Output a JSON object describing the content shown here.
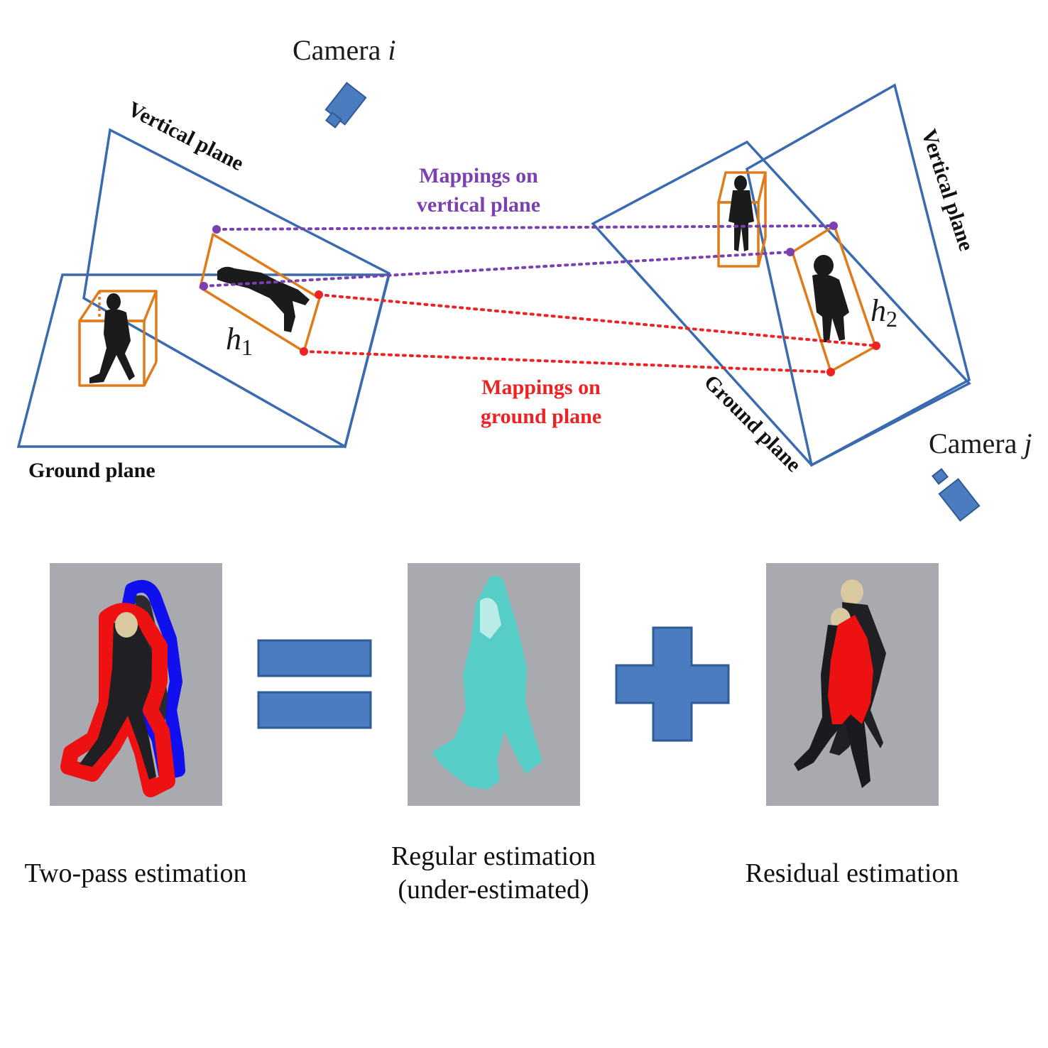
{
  "top": {
    "camera_i": "Camera",
    "camera_i_var": "i",
    "camera_j": "Camera",
    "camera_j_var": "j",
    "left_vertical_plane": "Vertical plane",
    "left_ground_plane": "Ground plane",
    "right_vertical_plane": "Vertical plane",
    "right_ground_plane": "Ground plane",
    "mapping_vertical_line1": "Mappings on",
    "mapping_vertical_line2": "vertical plane",
    "mapping_ground_line1": "Mappings on",
    "mapping_ground_line2": "ground plane",
    "h1": "h",
    "h1_sub": "1",
    "h2": "h",
    "h2_sub": "2"
  },
  "bottom": {
    "caption_two_pass": "Two-pass estimation",
    "caption_regular_line1": "Regular estimation",
    "caption_regular_line2": "(under-estimated)",
    "caption_residual": "Residual estimation"
  },
  "colors": {
    "plane": "#3a6ab0",
    "box": "#e07b1a",
    "vertical_mapping": "#7a3fb0",
    "ground_mapping": "#ee2222",
    "regular_mask": "#4fd0c8",
    "residual_mask": "#ee1111",
    "outline_blue": "#1010ee",
    "outline_red": "#ee1111"
  }
}
